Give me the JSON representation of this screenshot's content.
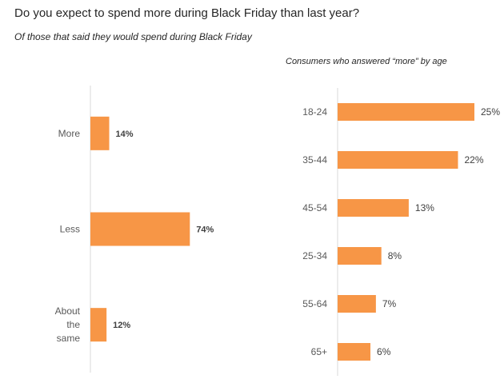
{
  "colors": {
    "bar": "#F79646",
    "axis": "#d9d9d9"
  },
  "header": {
    "title": "Do you expect to spend more during Black Friday than last year?",
    "subtitle": "Of those that said they would spend during Black Friday"
  },
  "chart_data": [
    {
      "type": "bar",
      "orientation": "horizontal",
      "title": "",
      "categories": [
        "More",
        "Less",
        "About the same"
      ],
      "values": [
        14,
        74,
        12
      ],
      "value_labels": [
        "14%",
        "74%",
        "12%"
      ],
      "unit": "%",
      "xlim": [
        0,
        100
      ]
    },
    {
      "type": "bar",
      "orientation": "horizontal",
      "title": "Consumers who answered “more” by age",
      "categories": [
        "18-24",
        "35-44",
        "45-54",
        "25-34",
        "55-64",
        "65+"
      ],
      "values": [
        25,
        22,
        13,
        8,
        7,
        6
      ],
      "value_labels": [
        "25%",
        "22%",
        "13%",
        "8%",
        "7%",
        "6%"
      ],
      "unit": "%",
      "xlim": [
        0,
        40
      ]
    }
  ]
}
